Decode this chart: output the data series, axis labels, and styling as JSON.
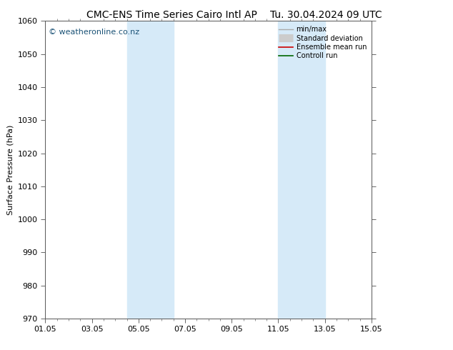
{
  "title_left": "CMC-ENS Time Series Cairo Intl AP",
  "title_right": "Tu. 30.04.2024 09 UTC",
  "ylabel": "Surface Pressure (hPa)",
  "ylim": [
    970,
    1060
  ],
  "yticks": [
    970,
    980,
    990,
    1000,
    1010,
    1020,
    1030,
    1040,
    1050,
    1060
  ],
  "xlim_start": 0,
  "xlim_end": 14,
  "xtick_positions": [
    0,
    2,
    4,
    6,
    8,
    10,
    12,
    14
  ],
  "xtick_labels": [
    "01.05",
    "03.05",
    "05.05",
    "07.05",
    "09.05",
    "11.05",
    "13.05",
    "15.05"
  ],
  "shade_bands": [
    {
      "xstart": 3.5,
      "xend": 5.5
    },
    {
      "xstart": 10.0,
      "xend": 12.0
    }
  ],
  "shade_color": "#d6eaf8",
  "watermark": "© weatheronline.co.nz",
  "watermark_color": "#1a5276",
  "legend_items": [
    {
      "label": "min/max",
      "color": "#aaaaaa",
      "linestyle": "-",
      "linewidth": 1.0
    },
    {
      "label": "Standard deviation",
      "color": "#cccccc",
      "linestyle": "-",
      "linewidth": 8
    },
    {
      "label": "Ensemble mean run",
      "color": "#cc0000",
      "linestyle": "-",
      "linewidth": 1.2
    },
    {
      "label": "Controll run",
      "color": "#006600",
      "linestyle": "-",
      "linewidth": 1.2
    }
  ],
  "bg_color": "#ffffff",
  "plot_bg_color": "#ffffff",
  "title_fontsize": 10,
  "ylabel_fontsize": 8,
  "tick_fontsize": 8,
  "legend_fontsize": 7,
  "watermark_fontsize": 8
}
